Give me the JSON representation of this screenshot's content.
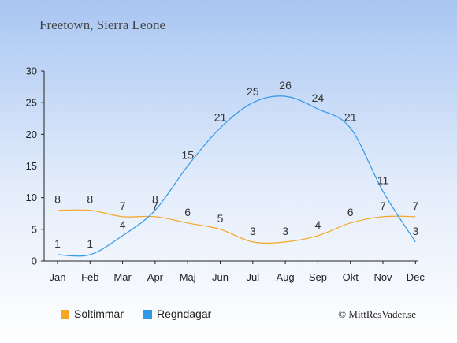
{
  "chart_data": {
    "type": "line",
    "title": "Freetown, Sierra Leone",
    "categories": [
      "Jan",
      "Feb",
      "Mar",
      "Apr",
      "Maj",
      "Jun",
      "Jul",
      "Aug",
      "Sep",
      "Okt",
      "Nov",
      "Dec"
    ],
    "series": [
      {
        "name": "Soltimmar",
        "color": "#f5a623",
        "values": [
          8,
          8,
          7,
          7,
          6,
          5,
          3,
          3,
          4,
          6,
          7,
          7
        ]
      },
      {
        "name": "Regndagar",
        "color": "#3399e6",
        "values": [
          1,
          1,
          4,
          8,
          15,
          21,
          25,
          26,
          24,
          21,
          11,
          3
        ]
      }
    ],
    "y_ticks": [
      "0",
      "5",
      "10",
      "15",
      "20",
      "25",
      "30"
    ],
    "ylim": [
      0,
      30
    ],
    "grid": false,
    "legend": "bottom-left"
  },
  "credit": "© MittResVader.se"
}
